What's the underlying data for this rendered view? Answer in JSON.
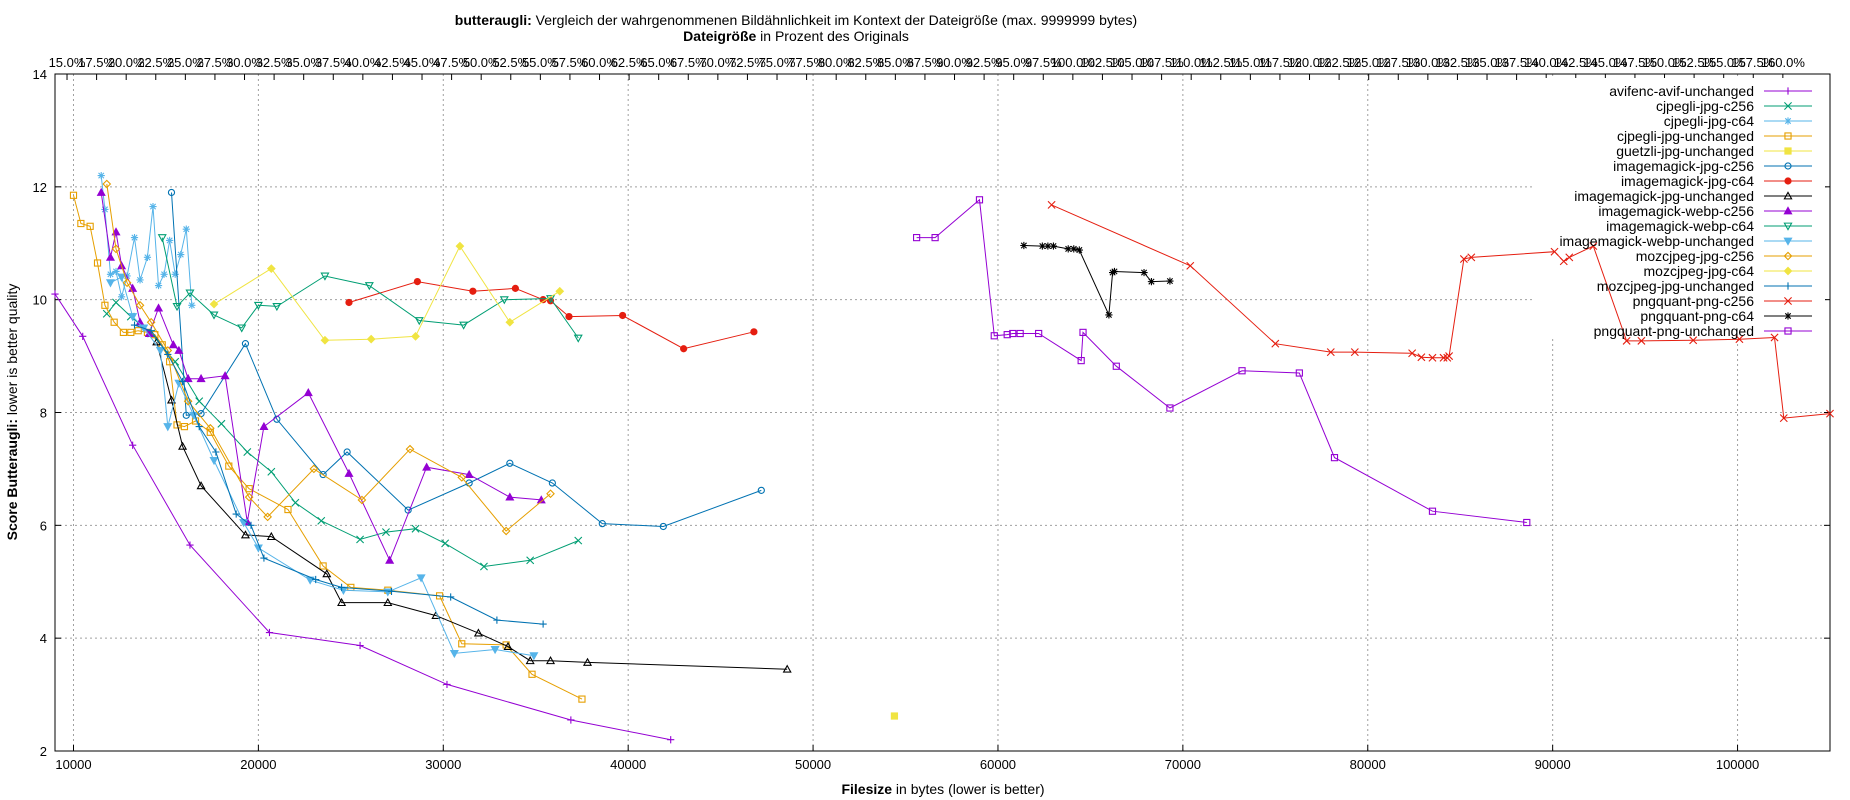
{
  "title": {
    "line1_bold": "butteraugli:",
    "line1_rest": " Vergleich der wahrgenommenen Bildähnlichkeit im Kontext der Dateigröße (max. 9999999 bytes)",
    "line2_bold": "Dateigröße",
    "line2_rest": " in Prozent des Originals"
  },
  "chart_data": {
    "type": "line",
    "xlabel_bold": "Filesize",
    "xlabel_rest": " in bytes (lower is better)",
    "ylabel_bold": "Score Butteraugli:",
    "ylabel_rest": " lower is better quality",
    "xlim": [
      9000,
      105000
    ],
    "ylim": [
      2,
      14
    ],
    "grid": true,
    "legend_position": "top-right",
    "x_ticks": [
      10000,
      20000,
      30000,
      40000,
      50000,
      60000,
      70000,
      80000,
      90000,
      100000
    ],
    "y_ticks": [
      2,
      4,
      6,
      8,
      10,
      12,
      14
    ],
    "x2_ticks": [
      {
        "value": 9650,
        "label": "15.0%"
      },
      {
        "value": 11250,
        "label": "17.5%"
      },
      {
        "value": 12850,
        "label": "20.0%"
      },
      {
        "value": 14450,
        "label": "22.5%"
      },
      {
        "value": 16050,
        "label": "25.0%"
      },
      {
        "value": 17650,
        "label": "27.5%"
      },
      {
        "value": 19250,
        "label": "30.0%"
      },
      {
        "value": 20850,
        "label": "32.5%"
      },
      {
        "value": 22450,
        "label": "35.0%"
      },
      {
        "value": 24050,
        "label": "37.5%"
      },
      {
        "value": 25650,
        "label": "40.0%"
      },
      {
        "value": 27250,
        "label": "42.5%"
      },
      {
        "value": 28850,
        "label": "45.0%"
      },
      {
        "value": 30450,
        "label": "47.5%"
      },
      {
        "value": 32050,
        "label": "50.0%"
      },
      {
        "value": 33650,
        "label": "52.5%"
      },
      {
        "value": 35250,
        "label": "55.0%"
      },
      {
        "value": 36850,
        "label": "57.5%"
      },
      {
        "value": 38450,
        "label": "60.0%"
      },
      {
        "value": 40050,
        "label": "62.5%"
      },
      {
        "value": 41650,
        "label": "65.0%"
      },
      {
        "value": 43250,
        "label": "67.5%"
      },
      {
        "value": 44850,
        "label": "70.0%"
      },
      {
        "value": 46450,
        "label": "72.5%"
      },
      {
        "value": 48050,
        "label": "75.0%"
      },
      {
        "value": 49650,
        "label": "77.5%"
      },
      {
        "value": 51250,
        "label": "80.0%"
      },
      {
        "value": 52850,
        "label": "82.5%"
      },
      {
        "value": 54450,
        "label": "85.0%"
      },
      {
        "value": 56050,
        "label": "87.5%"
      },
      {
        "value": 57650,
        "label": "90.0%"
      },
      {
        "value": 59250,
        "label": "92.5%"
      },
      {
        "value": 60850,
        "label": "95.0%"
      },
      {
        "value": 62450,
        "label": "97.5%"
      },
      {
        "value": 64050,
        "label": "100.0%"
      },
      {
        "value": 65650,
        "label": "102.5%"
      },
      {
        "value": 67250,
        "label": "105.0%"
      },
      {
        "value": 68850,
        "label": "107.5%"
      },
      {
        "value": 70450,
        "label": "110.0%"
      },
      {
        "value": 72050,
        "label": "112.5%"
      },
      {
        "value": 73650,
        "label": "115.0%"
      },
      {
        "value": 75250,
        "label": "117.5%"
      },
      {
        "value": 76850,
        "label": "120.0%"
      },
      {
        "value": 78450,
        "label": "122.5%"
      },
      {
        "value": 80050,
        "label": "125.0%"
      },
      {
        "value": 81650,
        "label": "127.5%"
      },
      {
        "value": 83250,
        "label": "130.0%"
      },
      {
        "value": 84850,
        "label": "132.5%"
      },
      {
        "value": 86450,
        "label": "135.0%"
      },
      {
        "value": 88050,
        "label": "137.5%"
      },
      {
        "value": 89650,
        "label": "140.0%"
      },
      {
        "value": 91250,
        "label": "142.5%"
      },
      {
        "value": 92850,
        "label": "145.0%"
      },
      {
        "value": 94450,
        "label": "147.5%"
      },
      {
        "value": 96050,
        "label": "150.0%"
      },
      {
        "value": 97650,
        "label": "152.5%"
      },
      {
        "value": 99250,
        "label": "155.0%"
      },
      {
        "value": 100850,
        "label": "157.5%"
      },
      {
        "value": 102450,
        "label": "160.0%"
      }
    ],
    "series": [
      {
        "name": "avifenc-avif-unchanged",
        "color": "#9400d3",
        "marker": "plus",
        "x": [
          9000,
          10500,
          13200,
          16300,
          20600,
          25500,
          30200,
          36900,
          42300
        ],
        "y": [
          10.1,
          9.35,
          7.42,
          5.65,
          4.1,
          3.87,
          3.18,
          2.55,
          2.2
        ]
      },
      {
        "name": "cjpegli-jpg-c256",
        "color": "#009e73",
        "marker": "x",
        "x": [
          11800,
          12300,
          13100,
          14200,
          15500,
          16800,
          18000,
          19400,
          20700,
          22000,
          23400,
          25500,
          26900,
          28500,
          30100,
          32200,
          34700,
          37300
        ],
        "y": [
          9.75,
          9.95,
          9.7,
          9.4,
          8.9,
          8.2,
          7.8,
          7.3,
          6.95,
          6.4,
          6.08,
          5.75,
          5.88,
          5.94,
          5.68,
          5.27,
          5.38,
          5.73
        ]
      },
      {
        "name": "cjpegli-jpg-c64",
        "color": "#56b4e9",
        "marker": "star",
        "x": [
          11500,
          11700,
          12000,
          12300,
          12600,
          12900,
          13300,
          13600,
          14000,
          14300,
          14600,
          14900,
          15200,
          15500,
          15800,
          16100,
          16400
        ],
        "y": [
          12.2,
          11.6,
          10.45,
          10.5,
          10.05,
          10.42,
          11.1,
          10.35,
          10.75,
          11.65,
          10.25,
          10.45,
          11.05,
          10.45,
          10.8,
          11.25,
          9.9
        ]
      },
      {
        "name": "cjpegli-jpg-unchanged",
        "color": "#e69f00",
        "marker": "square",
        "x": [
          10000,
          10400,
          10900,
          11300,
          11700,
          12200,
          12700,
          13100,
          13500,
          14000,
          14400,
          14800,
          15200,
          15600,
          16000,
          16600,
          17400,
          18400,
          19500,
          21600,
          23500,
          25000,
          27000,
          29800,
          31000,
          33400,
          34800,
          37500
        ],
        "y": [
          11.85,
          11.35,
          11.3,
          10.65,
          9.9,
          9.6,
          9.42,
          9.42,
          9.45,
          9.42,
          9.38,
          9.2,
          8.9,
          7.78,
          7.75,
          7.85,
          7.65,
          7.05,
          6.65,
          6.28,
          5.28,
          4.9,
          4.85,
          4.75,
          3.9,
          3.88,
          3.36,
          2.92
        ]
      },
      {
        "name": "guetzli-jpg-unchanged",
        "color": "#f0e442",
        "marker": "filled-square",
        "x": [
          54400
        ],
        "y": [
          2.62
        ]
      },
      {
        "name": "imagemagick-jpg-c256",
        "color": "#0072b2",
        "marker": "circle",
        "x": [
          15300,
          16100,
          16900,
          19300,
          21000,
          23500,
          24800,
          28100,
          31400,
          33600,
          35900,
          38600,
          41900,
          47200
        ],
        "y": [
          11.9,
          7.95,
          7.98,
          9.22,
          7.88,
          6.9,
          7.3,
          6.27,
          6.75,
          7.1,
          6.75,
          6.03,
          5.98,
          6.62
        ]
      },
      {
        "name": "imagemagick-jpg-c64",
        "color": "#e51e10",
        "marker": "filled-circle",
        "x": [
          24900,
          28600,
          31600,
          33900,
          35400,
          35800,
          36800,
          39700,
          43000,
          46800
        ],
        "y": [
          9.95,
          10.32,
          10.15,
          10.2,
          10.0,
          9.98,
          9.7,
          9.72,
          9.13,
          9.43
        ]
      },
      {
        "name": "imagemagick-jpg-unchanged",
        "color": "#000000",
        "marker": "triangle",
        "x": [
          14500,
          15300,
          15900,
          16900,
          19300,
          20700,
          23700,
          24500,
          27000,
          29600,
          31900,
          33500,
          34700,
          35800,
          37800,
          48600
        ],
        "y": [
          9.25,
          8.22,
          7.4,
          6.7,
          5.83,
          5.8,
          5.14,
          4.63,
          4.63,
          4.4,
          4.09,
          3.85,
          3.6,
          3.6,
          3.57,
          3.45
        ]
      },
      {
        "name": "imagemagick-webp-c256",
        "color": "#9400d3",
        "marker": "filled-triangle",
        "x": [
          11500,
          12000,
          12300,
          12600,
          13200,
          13600,
          14100,
          14600,
          15400,
          15700,
          16200,
          16900,
          18200,
          19400,
          20300,
          22700,
          24900,
          27100,
          29100,
          31400,
          33600,
          35300
        ],
        "y": [
          11.9,
          10.75,
          11.2,
          10.6,
          10.2,
          9.6,
          9.4,
          9.85,
          9.2,
          9.1,
          8.6,
          8.6,
          8.65,
          6.06,
          7.75,
          8.35,
          6.92,
          5.38,
          7.03,
          6.9,
          6.5,
          6.45
        ]
      },
      {
        "name": "imagemagick-webp-c64",
        "color": "#009e73",
        "marker": "triangle-down",
        "x": [
          14800,
          15600,
          16300,
          17600,
          19100,
          20000,
          21000,
          23600,
          26000,
          28700,
          31100,
          33300,
          35800,
          37300
        ],
        "y": [
          11.1,
          9.88,
          10.12,
          9.73,
          9.5,
          9.9,
          9.88,
          10.42,
          10.25,
          9.63,
          9.55,
          10.0,
          10.02,
          9.32
        ]
      },
      {
        "name": "imagemagick-webp-unchanged",
        "color": "#56b4e9",
        "marker": "filled-triangle-down",
        "x": [
          12000,
          12600,
          13200,
          13800,
          14700,
          15100,
          15700,
          16500,
          17600,
          19200,
          20000,
          22800,
          24600,
          27000,
          28800,
          30600,
          32800,
          34900
        ],
        "y": [
          10.3,
          10.4,
          9.7,
          9.5,
          9.1,
          7.75,
          8.52,
          7.95,
          7.15,
          6.05,
          5.6,
          5.03,
          4.85,
          4.82,
          5.07,
          3.73,
          3.8,
          3.69
        ]
      },
      {
        "name": "mozcjpeg-jpg-c256",
        "color": "#e69f00",
        "marker": "diamond",
        "x": [
          11800,
          12300,
          12900,
          13600,
          14200,
          15100,
          16200,
          17400,
          19500,
          20500,
          23000,
          25600,
          28200,
          31000,
          33400,
          35800
        ],
        "y": [
          12.05,
          10.9,
          10.3,
          9.9,
          9.6,
          9.1,
          8.2,
          7.72,
          6.5,
          6.15,
          7.0,
          6.45,
          7.35,
          6.85,
          5.9,
          6.56
        ]
      },
      {
        "name": "mozcjpeg-jpg-c64",
        "color": "#f0e442",
        "marker": "filled-diamond",
        "x": [
          17600,
          20700,
          23600,
          26100,
          28500,
          30900,
          33600,
          36300
        ],
        "y": [
          9.92,
          10.55,
          9.28,
          9.3,
          9.35,
          10.95,
          9.6,
          10.15
        ]
      },
      {
        "name": "mozcjpeg-jpg-unchanged",
        "color": "#0072b2",
        "marker": "plus",
        "x": [
          13300,
          14200,
          15100,
          15900,
          16800,
          17700,
          18800,
          19600,
          20300,
          23100,
          24500,
          27200,
          30400,
          32900,
          35400
        ],
        "y": [
          9.55,
          9.45,
          9.03,
          8.55,
          7.75,
          7.3,
          6.2,
          6.0,
          5.42,
          5.04,
          4.9,
          4.83,
          4.73,
          4.32,
          4.25
        ]
      },
      {
        "name": "pngquant-png-c256",
        "color": "#e51e10",
        "marker": "x",
        "x": [
          62900,
          70400,
          75000,
          78000,
          79300,
          82400,
          82900,
          83500,
          84100,
          84300,
          84400,
          85200,
          85600,
          90100,
          90600,
          90900,
          92200,
          94000,
          94800,
          97600,
          100100,
          102000,
          102500,
          105000
        ],
        "y": [
          11.68,
          10.6,
          9.22,
          9.07,
          9.07,
          9.05,
          8.98,
          8.97,
          8.97,
          8.97,
          9.0,
          10.72,
          10.75,
          10.85,
          10.68,
          10.75,
          10.95,
          9.27,
          9.27,
          9.28,
          9.3,
          9.33,
          7.9,
          7.98
        ]
      },
      {
        "name": "pngquant-png-c64",
        "color": "#000000",
        "marker": "star",
        "x": [
          61400,
          62400,
          62700,
          63000,
          63800,
          64100,
          64400,
          66000,
          66200,
          66300,
          67900,
          68300,
          69300
        ],
        "y": [
          10.96,
          10.95,
          10.95,
          10.95,
          10.9,
          10.9,
          10.88,
          9.73,
          10.48,
          10.5,
          10.48,
          10.32,
          10.33
        ]
      },
      {
        "name": "pngquant-png-unchanged",
        "color": "#9400d3",
        "marker": "square",
        "x": [
          55600,
          56600,
          59000,
          59800,
          60500,
          60800,
          61200,
          62200,
          64500,
          64600,
          66400,
          69300,
          73200,
          76300,
          78200,
          83500,
          88600
        ],
        "y": [
          11.1,
          11.1,
          11.77,
          9.36,
          9.38,
          9.4,
          9.4,
          9.4,
          8.92,
          9.42,
          8.82,
          8.08,
          8.74,
          8.7,
          7.2,
          6.25,
          6.05
        ]
      }
    ]
  }
}
